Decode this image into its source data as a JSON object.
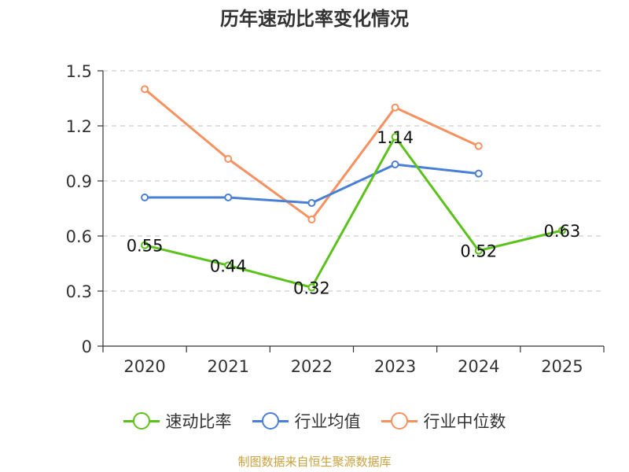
{
  "chart_data": {
    "type": "line",
    "title": "历年速动比率变化情况",
    "categories": [
      "2020",
      "2021",
      "2022",
      "2023",
      "2024",
      "2025"
    ],
    "y_ticks": [
      "0",
      "0.3",
      "0.6",
      "0.9",
      "1.2",
      "1.5"
    ],
    "ylim": [
      0,
      1.5
    ],
    "grid": true,
    "legend_position": "bottom",
    "series": [
      {
        "name": "速动比率",
        "color": "#5bc21c",
        "show_labels": true,
        "values": [
          0.55,
          0.44,
          0.32,
          1.14,
          0.52,
          0.63
        ],
        "labels": [
          "0.55",
          "0.44",
          "0.32",
          "1.14",
          "0.52",
          "0.63"
        ]
      },
      {
        "name": "行业均值",
        "color": "#4a7fd6",
        "show_labels": false,
        "values": [
          0.81,
          0.81,
          0.78,
          0.99,
          0.94,
          null
        ]
      },
      {
        "name": "行业中位数",
        "color": "#f79160",
        "show_labels": false,
        "values": [
          1.4,
          1.02,
          0.69,
          1.3,
          1.09,
          null
        ]
      }
    ]
  },
  "source": "制图数据来自恒生聚源数据库"
}
